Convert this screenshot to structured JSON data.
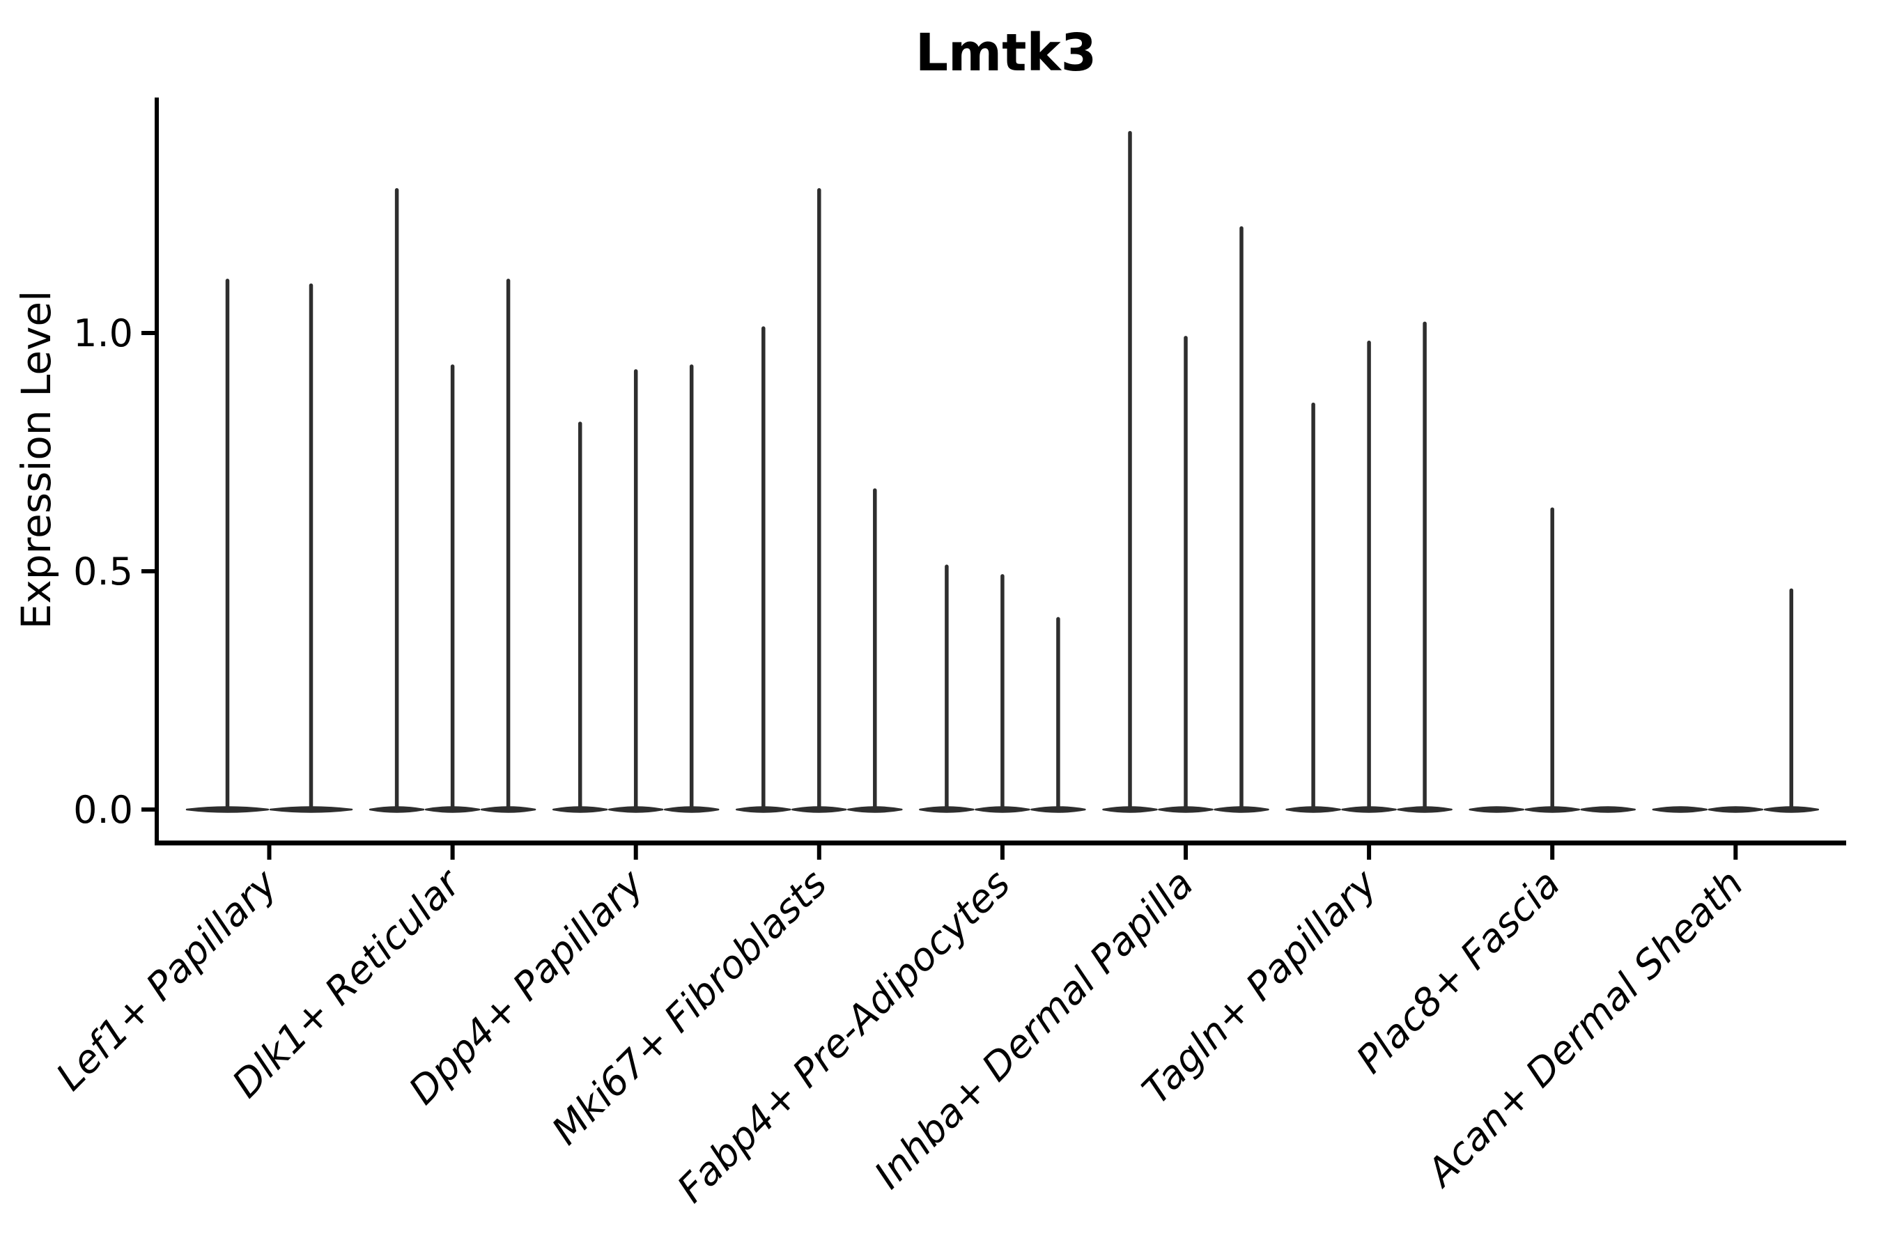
{
  "title": "Lmtk3",
  "ylabel": "Expression Level",
  "colors": {
    "violin": "#2e2e2e",
    "axis": "#000000",
    "text": "#000000",
    "background": "#ffffff"
  },
  "chart_data": {
    "type": "violin",
    "title": "Lmtk3",
    "xlabel": "",
    "ylabel": "Expression Level",
    "ylim": [
      -0.07,
      1.49
    ],
    "yticks": [
      0.0,
      0.5,
      1.0
    ],
    "ytick_labels": [
      "0.0",
      "0.5",
      "1.0"
    ],
    "grid": false,
    "legend": "none",
    "orientation": "vertical",
    "note": "Needle-thin violins: nearly all cells at 0 expression (flat body on baseline) with a thin spike up to the max expression value per violin; violins are grouped per cell type",
    "categories": [
      "Lef1+ Papillary",
      "Dlk1+ Reticular",
      "Dpp4+ Papillary",
      "Mki67+ Fibroblasts",
      "Fabp4+ Pre-Adipocytes",
      "Inhba+ Dermal Papilla",
      "Tagln+ Papillary",
      "Plac8+ Fascia",
      "Acan+ Dermal Sheath"
    ],
    "groups": [
      {
        "label": "Lef1+ Papillary",
        "violin_max_values": [
          1.11,
          1.1
        ]
      },
      {
        "label": "Dlk1+ Reticular",
        "violin_max_values": [
          1.3,
          0.93,
          1.11
        ]
      },
      {
        "label": "Dpp4+ Papillary",
        "violin_max_values": [
          0.81,
          0.92,
          0.93
        ]
      },
      {
        "label": "Mki67+ Fibroblasts",
        "violin_max_values": [
          1.01,
          1.3,
          0.67
        ]
      },
      {
        "label": "Fabp4+ Pre-Adipocytes",
        "violin_max_values": [
          0.51,
          0.49,
          0.4
        ]
      },
      {
        "label": "Inhba+ Dermal Papilla",
        "violin_max_values": [
          1.42,
          0.99,
          1.22
        ]
      },
      {
        "label": "Tagln+ Papillary",
        "violin_max_values": [
          0.85,
          0.98,
          1.02
        ]
      },
      {
        "label": "Plac8+ Fascia",
        "violin_max_values": [
          0.0,
          0.63,
          0.0
        ]
      },
      {
        "label": "Acan+ Dermal Sheath",
        "violin_max_values": [
          0.0,
          0.0,
          0.46
        ]
      }
    ]
  }
}
